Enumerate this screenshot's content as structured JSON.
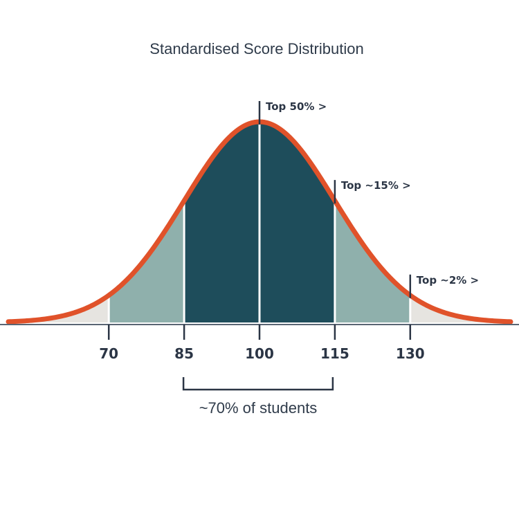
{
  "chart_data": {
    "type": "area",
    "title": "Standardised Score Distribution",
    "xlabel": "",
    "ylabel": "",
    "distribution": {
      "mean": 100,
      "sd": 15
    },
    "xlim": [
      50,
      150
    ],
    "x_ticks": [
      70,
      85,
      100,
      115,
      130
    ],
    "tick_labels": [
      "70",
      "85",
      "100",
      "115",
      "130"
    ],
    "regions": [
      {
        "from": 50,
        "to": 70,
        "color": "#e6e4e0"
      },
      {
        "from": 70,
        "to": 85,
        "color": "#8fb0ac"
      },
      {
        "from": 85,
        "to": 100,
        "color": "#1e4d5b"
      },
      {
        "from": 100,
        "to": 115,
        "color": "#1e4d5b"
      },
      {
        "from": 115,
        "to": 130,
        "color": "#8fb0ac"
      },
      {
        "from": 130,
        "to": 150,
        "color": "#e6e4e0"
      }
    ],
    "markers": [
      {
        "x": 100,
        "label": "Top 50% >"
      },
      {
        "x": 115,
        "label": "Top ~15% >"
      },
      {
        "x": 130,
        "label": "Top ~2% >"
      }
    ],
    "bracket": {
      "from": 85,
      "to": 115,
      "label": "~70% of students"
    },
    "curve_color": "#e0522a",
    "axis_color": "#5a6573",
    "grid": false,
    "legend": "none"
  }
}
